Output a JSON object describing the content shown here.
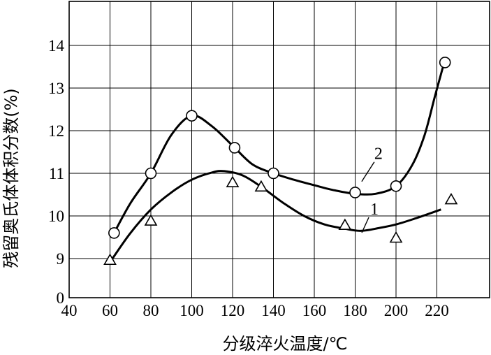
{
  "chart_data": {
    "type": "line",
    "xlabel": "分级淬火温度/℃",
    "ylabel": "残留奥氏体体积分数(%)",
    "x_ticks": [
      40,
      60,
      80,
      100,
      120,
      140,
      160,
      180,
      200,
      220
    ],
    "y_ticks": [
      0,
      9,
      10,
      11,
      12,
      13,
      14
    ],
    "xlim": [
      40,
      230
    ],
    "ylim_note": "broken axis: 0 then 9 to 14",
    "grid": true,
    "series": [
      {
        "name": "1",
        "marker": "triangle",
        "points": [
          [
            60,
            8.8
          ],
          [
            80,
            9.9
          ],
          [
            120,
            10.8
          ],
          [
            134,
            10.7
          ],
          [
            175,
            9.8
          ],
          [
            200,
            9.5
          ],
          [
            227,
            10.4
          ]
        ],
        "curve": [
          [
            61,
            8.85
          ],
          [
            70,
            9.6
          ],
          [
            80,
            10.15
          ],
          [
            90,
            10.55
          ],
          [
            100,
            10.85
          ],
          [
            110,
            11.02
          ],
          [
            116,
            11.05
          ],
          [
            125,
            10.95
          ],
          [
            135,
            10.65
          ],
          [
            145,
            10.3
          ],
          [
            155,
            10.0
          ],
          [
            165,
            9.8
          ],
          [
            175,
            9.7
          ],
          [
            183,
            9.65
          ],
          [
            192,
            9.72
          ],
          [
            200,
            9.8
          ],
          [
            210,
            9.95
          ],
          [
            222,
            10.15
          ]
        ]
      },
      {
        "name": "2",
        "marker": "circle",
        "points": [
          [
            62,
            9.6
          ],
          [
            80,
            11.0
          ],
          [
            100,
            12.35
          ],
          [
            121,
            11.6
          ],
          [
            140,
            11.0
          ],
          [
            180,
            10.55
          ],
          [
            200,
            10.7
          ],
          [
            224,
            13.6
          ]
        ],
        "curve": [
          [
            62,
            9.6
          ],
          [
            70,
            10.3
          ],
          [
            80,
            11.0
          ],
          [
            90,
            11.9
          ],
          [
            100,
            12.35
          ],
          [
            110,
            12.1
          ],
          [
            121,
            11.6
          ],
          [
            130,
            11.2
          ],
          [
            140,
            11.0
          ],
          [
            150,
            10.85
          ],
          [
            160,
            10.72
          ],
          [
            170,
            10.6
          ],
          [
            180,
            10.52
          ],
          [
            190,
            10.52
          ],
          [
            200,
            10.7
          ],
          [
            208,
            11.2
          ],
          [
            214,
            11.9
          ],
          [
            219,
            12.8
          ],
          [
            223,
            13.5
          ]
        ]
      }
    ],
    "curve_labels": [
      {
        "text": "1",
        "x": 186,
        "y": 10.0
      },
      {
        "text": "2",
        "x": 188,
        "y": 11.3
      }
    ]
  }
}
